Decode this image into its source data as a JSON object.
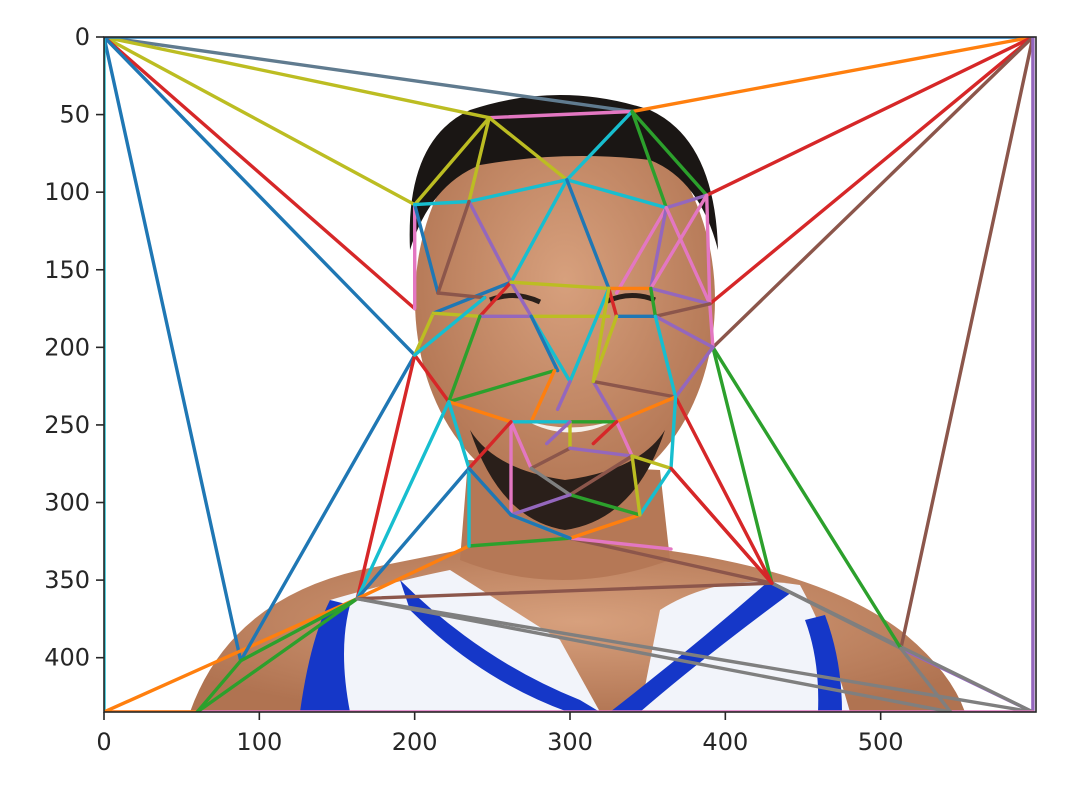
{
  "chart_data": {
    "type": "image-with-triangulation",
    "title": "",
    "xlabel": "",
    "ylabel": "",
    "xlim": [
      0,
      600
    ],
    "ylim": [
      435,
      0
    ],
    "xticks": [
      0,
      100,
      200,
      300,
      400,
      500
    ],
    "yticks": [
      0,
      50,
      100,
      150,
      200,
      250,
      300,
      350,
      400
    ],
    "grid": false,
    "legend": "none",
    "segments": [
      {
        "from": [
          0,
          0
        ],
        "to": [
          340,
          48
        ],
        "color": "#607b8f"
      },
      {
        "from": [
          0,
          0
        ],
        "to": [
          248,
          52
        ],
        "color": "#bcbd22"
      },
      {
        "from": [
          0,
          0
        ],
        "to": [
          200,
          108
        ],
        "color": "#bcbd22"
      },
      {
        "from": [
          0,
          0
        ],
        "to": [
          200,
          175
        ],
        "color": "#d62728"
      },
      {
        "from": [
          0,
          0
        ],
        "to": [
          200,
          205
        ],
        "color": "#1f77b4"
      },
      {
        "from": [
          0,
          0
        ],
        "to": [
          88,
          402
        ],
        "color": "#1f77b4"
      },
      {
        "from": [
          0,
          0
        ],
        "to": [
          0,
          435
        ],
        "color": "#17becf"
      },
      {
        "from": [
          0,
          0
        ],
        "to": [
          598,
          0
        ],
        "color": "#1f77b4"
      },
      {
        "from": [
          598,
          0
        ],
        "to": [
          340,
          48
        ],
        "color": "#ff7f0e"
      },
      {
        "from": [
          598,
          0
        ],
        "to": [
          388,
          102
        ],
        "color": "#d62728"
      },
      {
        "from": [
          598,
          0
        ],
        "to": [
          390,
          172
        ],
        "color": "#d62728"
      },
      {
        "from": [
          598,
          0
        ],
        "to": [
          392,
          200
        ],
        "color": "#8c564b"
      },
      {
        "from": [
          598,
          0
        ],
        "to": [
          513,
          394
        ],
        "color": "#8c564b"
      },
      {
        "from": [
          598,
          0
        ],
        "to": [
          598,
          435
        ],
        "color": "#9467bd"
      },
      {
        "from": [
          598,
          435
        ],
        "to": [
          513,
          394
        ],
        "color": "#9467bd"
      },
      {
        "from": [
          598,
          435
        ],
        "to": [
          430,
          352
        ],
        "color": "#7f7f7f"
      },
      {
        "from": [
          598,
          435
        ],
        "to": [
          163,
          362
        ],
        "color": "#7f7f7f"
      },
      {
        "from": [
          0,
          435
        ],
        "to": [
          598,
          435
        ],
        "color": "#e377c2"
      },
      {
        "from": [
          0,
          435
        ],
        "to": [
          163,
          362
        ],
        "color": "#ff7f0e"
      },
      {
        "from": [
          0,
          435
        ],
        "to": [
          60,
          435
        ],
        "color": "#ff7f0e"
      },
      {
        "from": [
          60,
          435
        ],
        "to": [
          88,
          402
        ],
        "color": "#2ca02c"
      },
      {
        "from": [
          60,
          435
        ],
        "to": [
          163,
          362
        ],
        "color": "#2ca02c"
      },
      {
        "from": [
          88,
          402
        ],
        "to": [
          200,
          205
        ],
        "color": "#1f77b4"
      },
      {
        "from": [
          88,
          402
        ],
        "to": [
          163,
          362
        ],
        "color": "#2ca02c"
      },
      {
        "from": [
          163,
          362
        ],
        "to": [
          200,
          205
        ],
        "color": "#d62728"
      },
      {
        "from": [
          163,
          362
        ],
        "to": [
          222,
          235
        ],
        "color": "#17becf"
      },
      {
        "from": [
          163,
          362
        ],
        "to": [
          235,
          278
        ],
        "color": "#1f77b4"
      },
      {
        "from": [
          163,
          362
        ],
        "to": [
          235,
          328
        ],
        "color": "#ff7f0e"
      },
      {
        "from": [
          163,
          362
        ],
        "to": [
          430,
          352
        ],
        "color": "#8c564b"
      },
      {
        "from": [
          163,
          362
        ],
        "to": [
          545,
          435
        ],
        "color": "#7f7f7f"
      },
      {
        "from": [
          430,
          352
        ],
        "to": [
          513,
          394
        ],
        "color": "#7f7f7f"
      },
      {
        "from": [
          430,
          352
        ],
        "to": [
          392,
          200
        ],
        "color": "#2ca02c"
      },
      {
        "from": [
          430,
          352
        ],
        "to": [
          368,
          232
        ],
        "color": "#d62728"
      },
      {
        "from": [
          430,
          352
        ],
        "to": [
          365,
          278
        ],
        "color": "#d62728"
      },
      {
        "from": [
          430,
          352
        ],
        "to": [
          300,
          323
        ],
        "color": "#8c564b"
      },
      {
        "from": [
          513,
          394
        ],
        "to": [
          392,
          200
        ],
        "color": "#2ca02c"
      },
      {
        "from": [
          513,
          394
        ],
        "to": [
          545,
          435
        ],
        "color": "#7f7f7f"
      },
      {
        "from": [
          235,
          328
        ],
        "to": [
          300,
          323
        ],
        "color": "#2ca02c"
      },
      {
        "from": [
          235,
          328
        ],
        "to": [
          235,
          278
        ],
        "color": "#17becf"
      },
      {
        "from": [
          300,
          323
        ],
        "to": [
          365,
          330
        ],
        "color": "#e377c2"
      },
      {
        "from": [
          300,
          323
        ],
        "to": [
          262,
          308
        ],
        "color": "#17becf"
      },
      {
        "from": [
          300,
          323
        ],
        "to": [
          345,
          308
        ],
        "color": "#ff7f0e"
      },
      {
        "from": [
          200,
          205
        ],
        "to": [
          222,
          235
        ],
        "color": "#d62728"
      },
      {
        "from": [
          200,
          205
        ],
        "to": [
          212,
          178
        ],
        "color": "#bcbd22"
      },
      {
        "from": [
          200,
          108
        ],
        "to": [
          248,
          52
        ],
        "color": "#bcbd22"
      },
      {
        "from": [
          200,
          108
        ],
        "to": [
          200,
          175
        ],
        "color": "#e377c2"
      },
      {
        "from": [
          200,
          108
        ],
        "to": [
          215,
          165
        ],
        "color": "#1f77b4"
      },
      {
        "from": [
          200,
          108
        ],
        "to": [
          235,
          106
        ],
        "color": "#17becf"
      },
      {
        "from": [
          248,
          52
        ],
        "to": [
          340,
          48
        ],
        "color": "#e377c2"
      },
      {
        "from": [
          248,
          52
        ],
        "to": [
          298,
          92
        ],
        "color": "#bcbd22"
      },
      {
        "from": [
          248,
          52
        ],
        "to": [
          235,
          106
        ],
        "color": "#bcbd22"
      },
      {
        "from": [
          340,
          48
        ],
        "to": [
          298,
          92
        ],
        "color": "#17becf"
      },
      {
        "from": [
          340,
          48
        ],
        "to": [
          388,
          102
        ],
        "color": "#2ca02c"
      },
      {
        "from": [
          340,
          48
        ],
        "to": [
          362,
          110
        ],
        "color": "#2ca02c"
      },
      {
        "from": [
          388,
          102
        ],
        "to": [
          362,
          110
        ],
        "color": "#9467bd"
      },
      {
        "from": [
          388,
          102
        ],
        "to": [
          390,
          172
        ],
        "color": "#e377c2"
      },
      {
        "from": [
          235,
          106
        ],
        "to": [
          298,
          92
        ],
        "color": "#17becf"
      },
      {
        "from": [
          298,
          92
        ],
        "to": [
          362,
          110
        ],
        "color": "#17becf"
      },
      {
        "from": [
          298,
          92
        ],
        "to": [
          262,
          158
        ],
        "color": "#17becf"
      },
      {
        "from": [
          298,
          92
        ],
        "to": [
          325,
          162
        ],
        "color": "#1f77b4"
      },
      {
        "from": [
          235,
          106
        ],
        "to": [
          262,
          158
        ],
        "color": "#9467bd"
      },
      {
        "from": [
          235,
          106
        ],
        "to": [
          215,
          165
        ],
        "color": "#8c564b"
      },
      {
        "from": [
          362,
          110
        ],
        "to": [
          330,
          165
        ],
        "color": "#e377c2"
      },
      {
        "from": [
          362,
          110
        ],
        "to": [
          352,
          162
        ],
        "color": "#9467bd"
      },
      {
        "from": [
          362,
          110
        ],
        "to": [
          390,
          172
        ],
        "color": "#e377c2"
      },
      {
        "from": [
          388,
          102
        ],
        "to": [
          352,
          162
        ],
        "color": "#e377c2"
      },
      {
        "from": [
          390,
          172
        ],
        "to": [
          392,
          200
        ],
        "color": "#e377c2"
      },
      {
        "from": [
          390,
          172
        ],
        "to": [
          352,
          162
        ],
        "color": "#9467bd"
      },
      {
        "from": [
          390,
          172
        ],
        "to": [
          355,
          180
        ],
        "color": "#8c564b"
      },
      {
        "from": [
          392,
          200
        ],
        "to": [
          368,
          232
        ],
        "color": "#9467bd"
      },
      {
        "from": [
          392,
          200
        ],
        "to": [
          355,
          180
        ],
        "color": "#9467bd"
      },
      {
        "from": [
          212,
          178
        ],
        "to": [
          262,
          158
        ],
        "color": "#1f77b4"
      },
      {
        "from": [
          212,
          178
        ],
        "to": [
          242,
          180
        ],
        "color": "#bcbd22"
      },
      {
        "from": [
          215,
          165
        ],
        "to": [
          245,
          168
        ],
        "color": "#8c564b"
      },
      {
        "from": [
          200,
          205
        ],
        "to": [
          245,
          168
        ],
        "color": "#17becf"
      },
      {
        "from": [
          242,
          180
        ],
        "to": [
          262,
          158
        ],
        "color": "#d62728"
      },
      {
        "from": [
          242,
          180
        ],
        "to": [
          275,
          180
        ],
        "color": "#9467bd"
      },
      {
        "from": [
          262,
          158
        ],
        "to": [
          275,
          180
        ],
        "color": "#9467bd"
      },
      {
        "from": [
          262,
          158
        ],
        "to": [
          325,
          162
        ],
        "color": "#bcbd22"
      },
      {
        "from": [
          275,
          180
        ],
        "to": [
          325,
          180
        ],
        "color": "#bcbd22"
      },
      {
        "from": [
          325,
          162
        ],
        "to": [
          352,
          162
        ],
        "color": "#ff7f0e"
      },
      {
        "from": [
          325,
          162
        ],
        "to": [
          330,
          180
        ],
        "color": "#d62728"
      },
      {
        "from": [
          330,
          180
        ],
        "to": [
          355,
          180
        ],
        "color": "#1f77b4"
      },
      {
        "from": [
          352,
          162
        ],
        "to": [
          355,
          180
        ],
        "color": "#2ca02c"
      },
      {
        "from": [
          325,
          162
        ],
        "to": [
          300,
          222
        ],
        "color": "#17becf"
      },
      {
        "from": [
          325,
          162
        ],
        "to": [
          315,
          222
        ],
        "color": "#bcbd22"
      },
      {
        "from": [
          275,
          180
        ],
        "to": [
          300,
          222
        ],
        "color": "#17becf"
      },
      {
        "from": [
          275,
          180
        ],
        "to": [
          292,
          215
        ],
        "color": "#1f77b4"
      },
      {
        "from": [
          242,
          180
        ],
        "to": [
          222,
          235
        ],
        "color": "#2ca02c"
      },
      {
        "from": [
          222,
          235
        ],
        "to": [
          290,
          215
        ],
        "color": "#2ca02c"
      },
      {
        "from": [
          222,
          235
        ],
        "to": [
          262,
          248
        ],
        "color": "#ff7f0e"
      },
      {
        "from": [
          222,
          235
        ],
        "to": [
          235,
          278
        ],
        "color": "#17becf"
      },
      {
        "from": [
          290,
          215
        ],
        "to": [
          275,
          248
        ],
        "color": "#ff7f0e"
      },
      {
        "from": [
          300,
          222
        ],
        "to": [
          292,
          240
        ],
        "color": "#9467bd"
      },
      {
        "from": [
          315,
          222
        ],
        "to": [
          330,
          248
        ],
        "color": "#9467bd"
      },
      {
        "from": [
          315,
          222
        ],
        "to": [
          368,
          232
        ],
        "color": "#8c564b"
      },
      {
        "from": [
          355,
          180
        ],
        "to": [
          368,
          232
        ],
        "color": "#17becf"
      },
      {
        "from": [
          330,
          180
        ],
        "to": [
          315,
          222
        ],
        "color": "#bcbd22"
      },
      {
        "from": [
          368,
          232
        ],
        "to": [
          330,
          248
        ],
        "color": "#ff7f0e"
      },
      {
        "from": [
          368,
          232
        ],
        "to": [
          365,
          278
        ],
        "color": "#17becf"
      },
      {
        "from": [
          262,
          248
        ],
        "to": [
          300,
          248
        ],
        "color": "#17becf"
      },
      {
        "from": [
          262,
          248
        ],
        "to": [
          275,
          278
        ],
        "color": "#e377c2"
      },
      {
        "from": [
          262,
          248
        ],
        "to": [
          262,
          308
        ],
        "color": "#e377c2"
      },
      {
        "from": [
          300,
          248
        ],
        "to": [
          330,
          248
        ],
        "color": "#2ca02c"
      },
      {
        "from": [
          300,
          248
        ],
        "to": [
          300,
          265
        ],
        "color": "#bcbd22"
      },
      {
        "from": [
          300,
          248
        ],
        "to": [
          285,
          262
        ],
        "color": "#9467bd"
      },
      {
        "from": [
          330,
          248
        ],
        "to": [
          340,
          270
        ],
        "color": "#e377c2"
      },
      {
        "from": [
          330,
          248
        ],
        "to": [
          315,
          262
        ],
        "color": "#d62728"
      },
      {
        "from": [
          275,
          278
        ],
        "to": [
          300,
          265
        ],
        "color": "#8c564b"
      },
      {
        "from": [
          300,
          265
        ],
        "to": [
          340,
          270
        ],
        "color": "#9467bd"
      },
      {
        "from": [
          275,
          278
        ],
        "to": [
          300,
          295
        ],
        "color": "#7f7f7f"
      },
      {
        "from": [
          300,
          295
        ],
        "to": [
          340,
          270
        ],
        "color": "#8c564b"
      },
      {
        "from": [
          300,
          295
        ],
        "to": [
          345,
          308
        ],
        "color": "#2ca02c"
      },
      {
        "from": [
          262,
          308
        ],
        "to": [
          300,
          295
        ],
        "color": "#9467bd"
      },
      {
        "from": [
          340,
          270
        ],
        "to": [
          365,
          278
        ],
        "color": "#bcbd22"
      },
      {
        "from": [
          345,
          308
        ],
        "to": [
          365,
          278
        ],
        "color": "#17becf"
      },
      {
        "from": [
          345,
          308
        ],
        "to": [
          340,
          270
        ],
        "color": "#bcbd22"
      },
      {
        "from": [
          235,
          278
        ],
        "to": [
          262,
          248
        ],
        "color": "#d62728"
      },
      {
        "from": [
          235,
          278
        ],
        "to": [
          262,
          308
        ],
        "color": "#1f77b4"
      },
      {
        "from": [
          262,
          308
        ],
        "to": [
          300,
          323
        ],
        "color": "#1f77b4"
      },
      {
        "from": [
          365,
          278
        ],
        "to": [
          430,
          352
        ],
        "color": "#d62728"
      }
    ]
  },
  "figure": {
    "background_image": "face photo of a person in a blue-trimmed white jersey",
    "image_colors": {
      "skin": "#c98a66",
      "hair": "#1a1614",
      "jersey": "#f2f4fa",
      "trim": "#1537c8",
      "trim_accent": "#e8c22a"
    }
  }
}
